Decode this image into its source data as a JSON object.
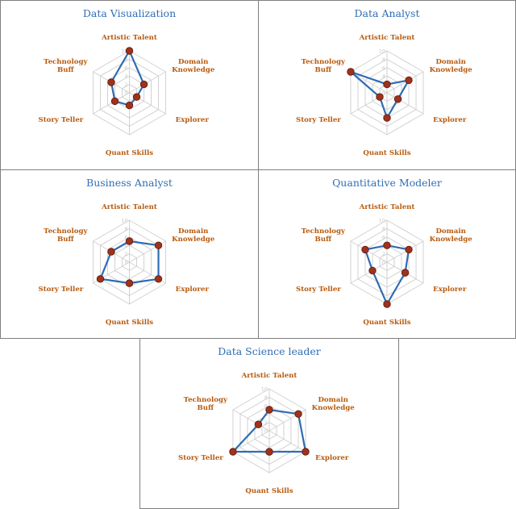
{
  "colors": {
    "title": "#2f6db5",
    "axis_label": "#b85a0d",
    "series_line": "#2e6cb3",
    "marker": "#a0321c",
    "grid": "#d2d2d2",
    "tick": "#c6c6c6",
    "border": "#7f7f7f"
  },
  "chart_data": [
    {
      "type": "radar",
      "title": "Data Visualization",
      "axes": [
        "Artistic Talent",
        "Domain Knowledge",
        "Explorer",
        "Quant Skills",
        "Story Teller",
        "Technology Buff"
      ],
      "ticks": [
        0,
        2,
        4,
        6,
        8,
        10
      ],
      "range": [
        0,
        10
      ],
      "grid": true,
      "values": [
        10,
        4,
        2,
        3,
        4,
        5
      ]
    },
    {
      "type": "radar",
      "title": "Data Analyst",
      "axes": [
        "Artistic Talent",
        "Domain Knowledge",
        "Explorer",
        "Quant Skills",
        "Story Teller",
        "Technology Buff"
      ],
      "ticks": [
        0,
        2,
        4,
        6,
        8,
        10
      ],
      "range": [
        0,
        10
      ],
      "grid": true,
      "values": [
        2,
        6,
        3,
        6,
        2,
        10
      ]
    },
    {
      "type": "radar",
      "title": "Business Analyst",
      "axes": [
        "Artistic Talent",
        "Domain Knowledge",
        "Explorer",
        "Quant Skills",
        "Story Teller",
        "Technology Buff"
      ],
      "ticks": [
        0,
        2,
        4,
        6,
        8,
        10
      ],
      "range": [
        0,
        10
      ],
      "grid": true,
      "values": [
        5,
        8,
        8,
        5,
        8,
        5
      ]
    },
    {
      "type": "radar",
      "title": "Quantitative Modeler",
      "axes": [
        "Artistic Talent",
        "Domain Knowledge",
        "Explorer",
        "Quant Skills",
        "Story Teller",
        "Technology Buff"
      ],
      "ticks": [
        0,
        2,
        4,
        6,
        8,
        10
      ],
      "range": [
        0,
        10
      ],
      "grid": true,
      "values": [
        4,
        6,
        5,
        10,
        4,
        6
      ]
    },
    {
      "type": "radar",
      "title": "Data Science leader",
      "axes": [
        "Artistic Talent",
        "Domain Knowledge",
        "Explorer",
        "Quant Skills",
        "Story Teller",
        "Technology Buff"
      ],
      "ticks": [
        0,
        2,
        4,
        6,
        8,
        10
      ],
      "range": [
        0,
        10
      ],
      "grid": true,
      "values": [
        5,
        8,
        10,
        5,
        10,
        3
      ]
    }
  ]
}
